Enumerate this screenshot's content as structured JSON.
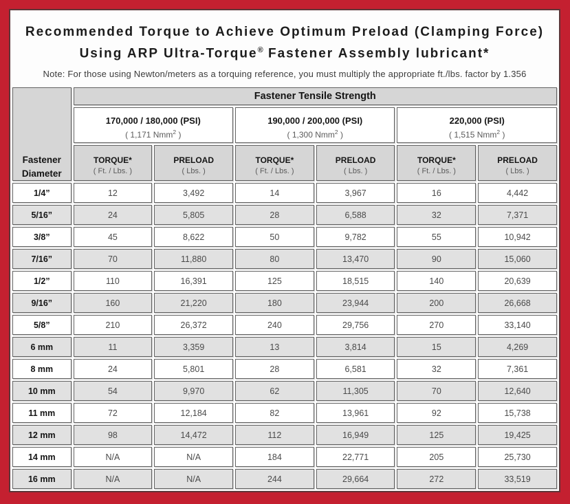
{
  "title": {
    "line1": "Recommended Torque to Achieve Optimum Preload (Clamping Force)",
    "line2_pre": "Using ARP Ultra-Torque",
    "line2_sup": "®",
    "line2_post": " Fastener Assembly lubricant*"
  },
  "note": "Note: For those using Newton/meters as a torquing reference, you must multiply the appropriate ft./lbs. factor by 1.356",
  "colors": {
    "frame_red": "#c42030",
    "panel_border": "#5d3538",
    "header_gray": "#d6d6d6",
    "row_shade_gray": "#e1e1e1",
    "cell_border": "#626262",
    "value_text": "#4a4a4a",
    "heading_text": "#141414"
  },
  "table": {
    "tensile_header": "Fastener Tensile Strength",
    "corner_header": {
      "line1": "Fastener",
      "line2": "Diameter"
    },
    "groups": [
      {
        "psi": "170,000 / 180,000 (PSI)",
        "nmm_pre": "( 1,171 Nmm",
        "nmm_sup": "2",
        "nmm_post": " )"
      },
      {
        "psi": "190,000 / 200,000 (PSI)",
        "nmm_pre": "( 1,300 Nmm",
        "nmm_sup": "2",
        "nmm_post": " )"
      },
      {
        "psi": "220,000 (PSI)",
        "nmm_pre": "( 1,515 Nmm",
        "nmm_sup": "2",
        "nmm_post": " )"
      }
    ],
    "col_headers": {
      "torque_label": "TORQUE*",
      "torque_sub": "( Ft. / Lbs. )",
      "preload_label": "PRELOAD",
      "preload_sub": "( Lbs. )"
    },
    "rows": [
      {
        "diameter": "1/4”",
        "values": [
          "12",
          "3,492",
          "14",
          "3,967",
          "16",
          "4,442"
        ]
      },
      {
        "diameter": "5/16”",
        "values": [
          "24",
          "5,805",
          "28",
          "6,588",
          "32",
          "7,371"
        ]
      },
      {
        "diameter": "3/8”",
        "values": [
          "45",
          "8,622",
          "50",
          "9,782",
          "55",
          "10,942"
        ]
      },
      {
        "diameter": "7/16”",
        "values": [
          "70",
          "11,880",
          "80",
          "13,470",
          "90",
          "15,060"
        ]
      },
      {
        "diameter": "1/2”",
        "values": [
          "110",
          "16,391",
          "125",
          "18,515",
          "140",
          "20,639"
        ]
      },
      {
        "diameter": "9/16”",
        "values": [
          "160",
          "21,220",
          "180",
          "23,944",
          "200",
          "26,668"
        ]
      },
      {
        "diameter": "5/8”",
        "values": [
          "210",
          "26,372",
          "240",
          "29,756",
          "270",
          "33,140"
        ]
      },
      {
        "diameter": "6 mm",
        "values": [
          "11",
          "3,359",
          "13",
          "3,814",
          "15",
          "4,269"
        ]
      },
      {
        "diameter": "8 mm",
        "values": [
          "24",
          "5,801",
          "28",
          "6,581",
          "32",
          "7,361"
        ]
      },
      {
        "diameter": "10 mm",
        "values": [
          "54",
          "9,970",
          "62",
          "11,305",
          "70",
          "12,640"
        ]
      },
      {
        "diameter": "11 mm",
        "values": [
          "72",
          "12,184",
          "82",
          "13,961",
          "92",
          "15,738"
        ]
      },
      {
        "diameter": "12 mm",
        "values": [
          "98",
          "14,472",
          "112",
          "16,949",
          "125",
          "19,425"
        ]
      },
      {
        "diameter": "14 mm",
        "values": [
          "N/A",
          "N/A",
          "184",
          "22,771",
          "205",
          "25,730"
        ]
      },
      {
        "diameter": "16 mm",
        "values": [
          "N/A",
          "N/A",
          "244",
          "29,664",
          "272",
          "33,519"
        ]
      }
    ]
  }
}
